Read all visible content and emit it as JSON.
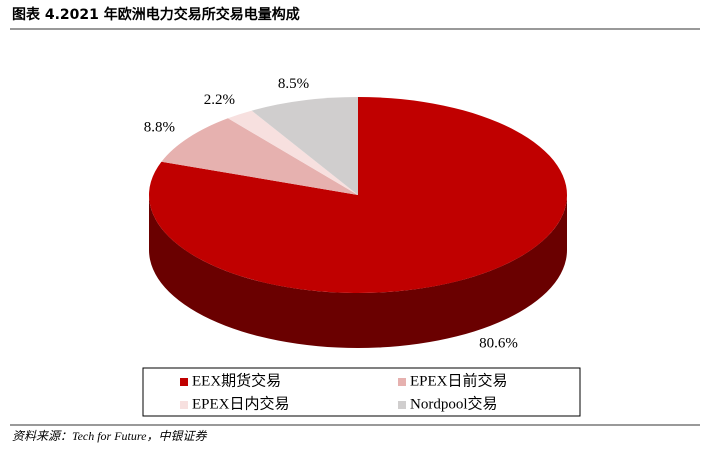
{
  "chart_data": {
    "type": "pie",
    "title": "图表 4.2021 年欧洲电力交易所交易电量构成",
    "categories": [
      "EEX期货交易",
      "EPEX日前交易",
      "EPEX日内交易",
      "Nordpool交易"
    ],
    "values": [
      80.6,
      8.8,
      2.2,
      8.5
    ],
    "value_labels": [
      "80.6%",
      "8.8%",
      "2.2%",
      "8.5%"
    ],
    "colors": [
      "#c00000",
      "#e6b1af",
      "#f7e0df",
      "#d0cece"
    ],
    "source": "资料来源：Tech for Future，中银证券"
  }
}
